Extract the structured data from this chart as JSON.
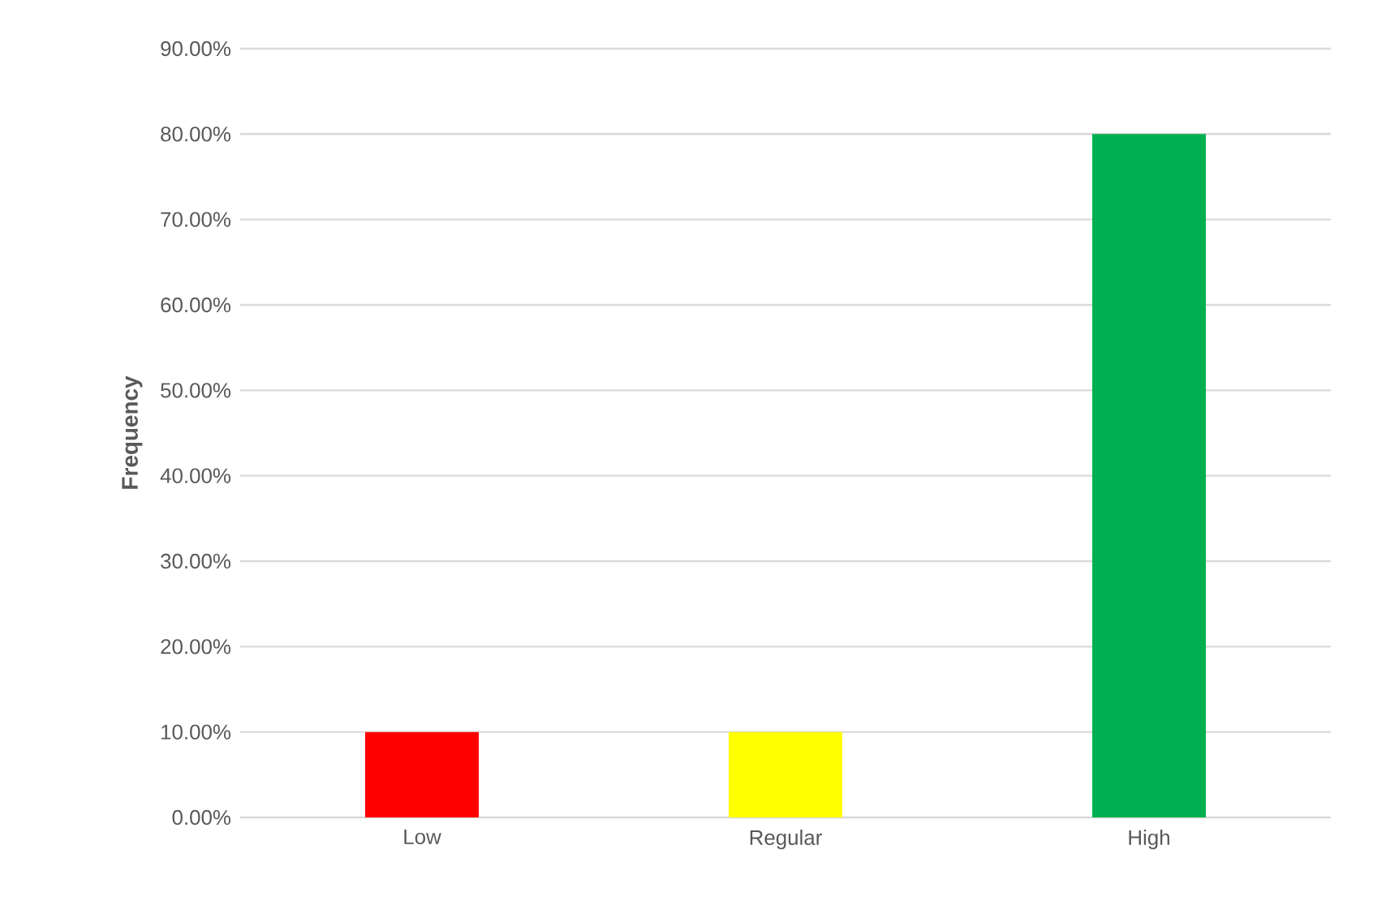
{
  "chart_data": {
    "type": "bar",
    "ylabel": "Frequency",
    "categories": [
      "Low",
      "Regular",
      "High"
    ],
    "values": [
      10,
      10,
      80
    ],
    "colors": [
      "#ff0000",
      "#ffff00",
      "#00b050"
    ],
    "ylim": [
      0,
      90
    ],
    "yticks": [
      {
        "value": 0,
        "label": "0.00%"
      },
      {
        "value": 10,
        "label": "10.00%"
      },
      {
        "value": 20,
        "label": "20.00%"
      },
      {
        "value": 30,
        "label": "30.00%"
      },
      {
        "value": 40,
        "label": "40.00%"
      },
      {
        "value": 50,
        "label": "50.00%"
      },
      {
        "value": 60,
        "label": "60.00%"
      },
      {
        "value": 70,
        "label": "70.00%"
      },
      {
        "value": 80,
        "label": "80.00%"
      },
      {
        "value": 90,
        "label": "90.00%"
      }
    ],
    "grid": "y"
  }
}
